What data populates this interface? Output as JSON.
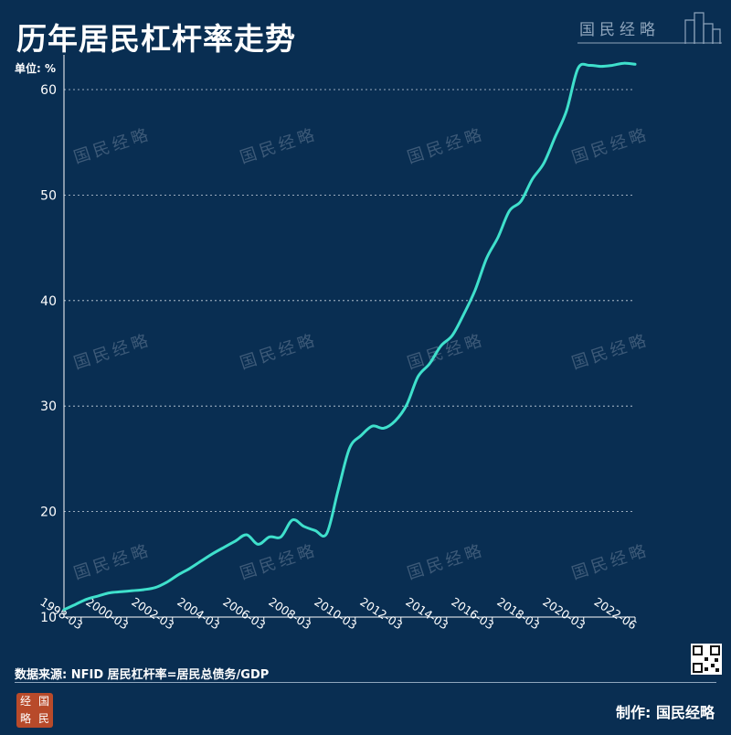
{
  "header": {
    "title": "历年居民杠杆率走势",
    "brand": "国民经略"
  },
  "watermark": "国民经略",
  "footer": {
    "source": "数据来源: NFID  居民杠杆率=居民总债务/GDP",
    "credit": "制作: 国民经略",
    "logo_chars": [
      "经",
      "国",
      "略",
      "民"
    ]
  },
  "colors": {
    "background": "#092e52",
    "line": "#3fe0cc",
    "grid": "#c9d4df",
    "text": "#ffffff"
  },
  "chart_data": {
    "type": "line",
    "title": "历年居民杠杆率走势",
    "ylabel": "单位: %",
    "xlabel": "",
    "ylim": [
      10,
      63
    ],
    "yticks": [
      10,
      20,
      30,
      40,
      50,
      60
    ],
    "xlim": [
      "1997-06",
      "2022-06"
    ],
    "xticks": [
      "1998-03",
      "2000-03",
      "2002-03",
      "2004-03",
      "2006-03",
      "2008-03",
      "2010-03",
      "2012-03",
      "2014-03",
      "2016-03",
      "2018-03",
      "2020-03",
      "2022-06"
    ],
    "grid": "horizontal dashed",
    "x": [
      "1997-06",
      "1997-12",
      "1998-06",
      "1998-12",
      "1999-06",
      "1999-12",
      "2000-06",
      "2000-12",
      "2001-06",
      "2001-12",
      "2002-06",
      "2002-12",
      "2003-06",
      "2003-12",
      "2004-06",
      "2004-12",
      "2005-06",
      "2005-12",
      "2006-06",
      "2006-12",
      "2007-06",
      "2007-12",
      "2008-06",
      "2008-12",
      "2009-06",
      "2009-12",
      "2010-06",
      "2010-12",
      "2011-06",
      "2011-12",
      "2012-06",
      "2012-12",
      "2013-06",
      "2013-12",
      "2014-06",
      "2014-12",
      "2015-06",
      "2015-12",
      "2016-06",
      "2016-12",
      "2017-06",
      "2017-12",
      "2018-06",
      "2018-12",
      "2019-06",
      "2019-12",
      "2020-06",
      "2020-12",
      "2021-06",
      "2021-12",
      "2022-06"
    ],
    "series": [
      {
        "values": [
          10.7,
          11.2,
          11.7,
          12.0,
          12.3,
          12.4,
          12.5,
          12.6,
          12.8,
          13.3,
          14.0,
          14.6,
          15.3,
          16.0,
          16.6,
          17.2,
          17.8,
          16.9,
          17.6,
          17.6,
          19.2,
          18.6,
          18.2,
          17.9,
          22.0,
          26.0,
          27.2,
          28.1,
          27.9,
          28.6,
          30.1,
          32.8,
          34.0,
          35.7,
          36.7,
          38.7,
          41.0,
          44.0,
          46.0,
          48.5,
          49.4,
          51.5,
          53.0,
          55.5,
          58.0,
          62.0,
          62.3,
          62.2,
          62.3,
          62.5,
          62.4
        ]
      }
    ]
  }
}
